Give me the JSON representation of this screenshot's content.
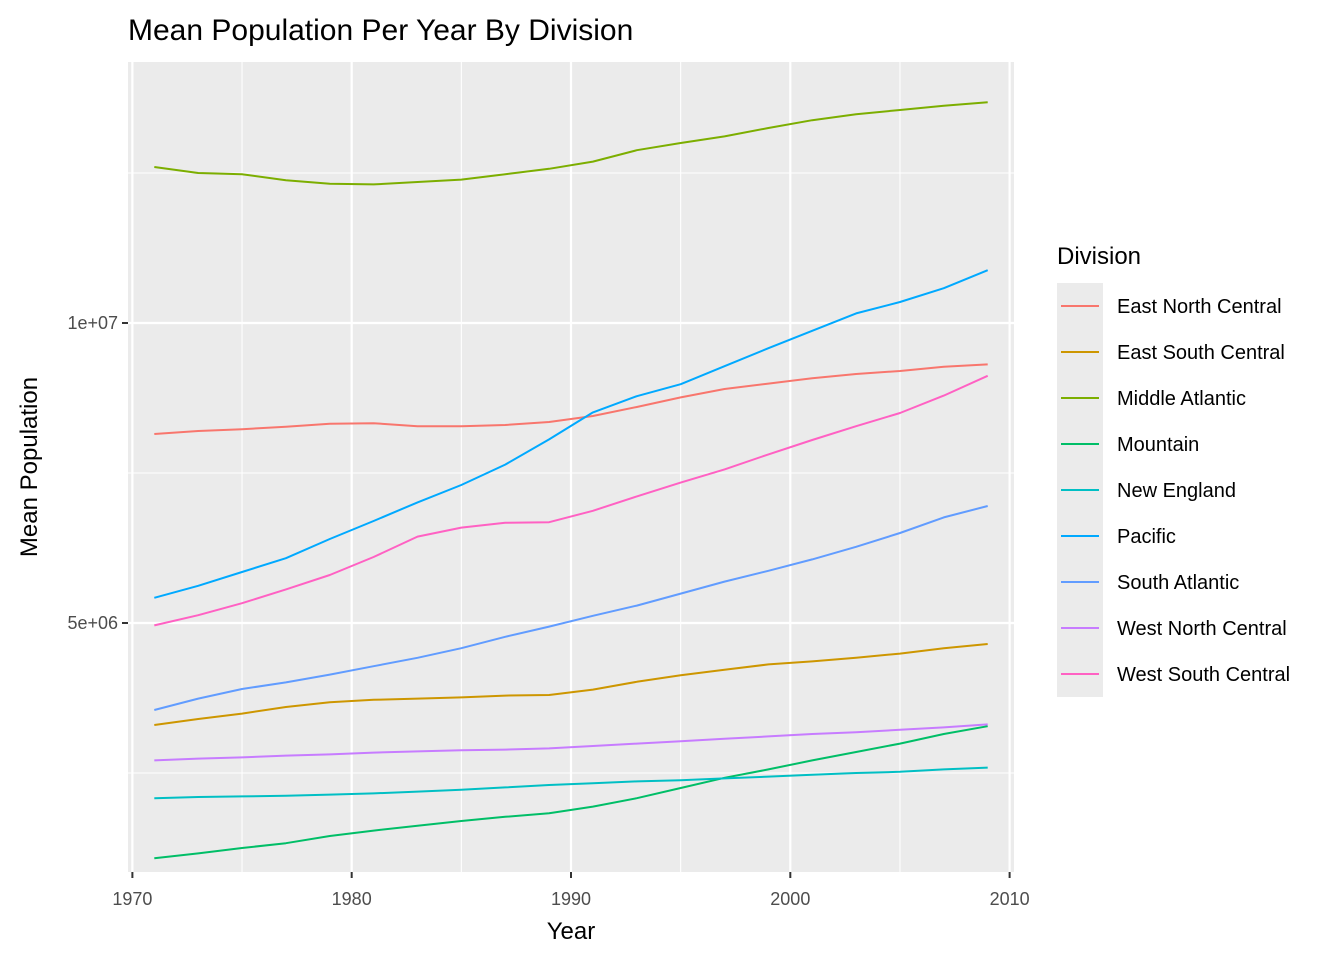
{
  "chart_data": {
    "type": "line",
    "title": "Mean Population Per Year By Division",
    "xlabel": "Year",
    "ylabel": "Mean Population",
    "xlim": [
      1969.8,
      2010.2
    ],
    "ylim": [
      850000,
      14350000
    ],
    "x_ticks": [
      1970,
      1980,
      1990,
      2000,
      2010
    ],
    "y_ticks": [
      5000000,
      10000000
    ],
    "y_tick_labels": [
      "5e+06",
      "1e+07"
    ],
    "grid": true,
    "legend_title": "Division",
    "legend_position": "right",
    "years": [
      1971,
      1973,
      1975,
      1977,
      1979,
      1981,
      1983,
      1985,
      1987,
      1989,
      1991,
      1993,
      1995,
      1997,
      1999,
      2001,
      2003,
      2005,
      2007,
      2009
    ],
    "series": [
      {
        "name": "East North Central",
        "color": "#F8766D",
        "values": [
          8150000,
          8200000,
          8230000,
          8270000,
          8320000,
          8330000,
          8280000,
          8280000,
          8300000,
          8350000,
          8450000,
          8600000,
          8760000,
          8900000,
          8990000,
          9080000,
          9150000,
          9200000,
          9270000,
          9310000
        ]
      },
      {
        "name": "East South Central",
        "color": "#CD9600",
        "values": [
          3300000,
          3400000,
          3490000,
          3600000,
          3680000,
          3720000,
          3740000,
          3760000,
          3790000,
          3800000,
          3890000,
          4020000,
          4130000,
          4220000,
          4310000,
          4360000,
          4420000,
          4490000,
          4580000,
          4650000
        ]
      },
      {
        "name": "Middle Atlantic",
        "color": "#7CAE00",
        "values": [
          12600000,
          12500000,
          12480000,
          12380000,
          12320000,
          12310000,
          12350000,
          12390000,
          12480000,
          12570000,
          12690000,
          12880000,
          13000000,
          13110000,
          13250000,
          13380000,
          13480000,
          13550000,
          13620000,
          13680000
        ]
      },
      {
        "name": "Mountain",
        "color": "#00BE67",
        "values": [
          1080000,
          1160000,
          1250000,
          1330000,
          1450000,
          1540000,
          1620000,
          1700000,
          1770000,
          1830000,
          1940000,
          2080000,
          2250000,
          2420000,
          2560000,
          2710000,
          2850000,
          2990000,
          3150000,
          3280000
        ]
      },
      {
        "name": "New England",
        "color": "#00BFC4",
        "values": [
          2080000,
          2100000,
          2110000,
          2120000,
          2140000,
          2160000,
          2190000,
          2220000,
          2260000,
          2300000,
          2330000,
          2360000,
          2380000,
          2410000,
          2440000,
          2470000,
          2500000,
          2520000,
          2560000,
          2590000
        ]
      },
      {
        "name": "Pacific",
        "color": "#00A9FF",
        "values": [
          5420000,
          5620000,
          5850000,
          6080000,
          6400000,
          6700000,
          7010000,
          7300000,
          7640000,
          8060000,
          8510000,
          8780000,
          8980000,
          9280000,
          9580000,
          9870000,
          10160000,
          10350000,
          10580000,
          10880000
        ]
      },
      {
        "name": "South Atlantic",
        "color": "#619CFF",
        "values": [
          3550000,
          3740000,
          3900000,
          4010000,
          4140000,
          4280000,
          4420000,
          4580000,
          4770000,
          4940000,
          5120000,
          5290000,
          5490000,
          5690000,
          5870000,
          6060000,
          6270000,
          6500000,
          6760000,
          6950000
        ]
      },
      {
        "name": "West North Central",
        "color": "#C77CFF",
        "values": [
          2710000,
          2740000,
          2760000,
          2790000,
          2810000,
          2840000,
          2860000,
          2880000,
          2890000,
          2910000,
          2950000,
          2990000,
          3030000,
          3070000,
          3110000,
          3150000,
          3180000,
          3220000,
          3260000,
          3310000
        ]
      },
      {
        "name": "West South Central",
        "color": "#FF61C3",
        "values": [
          4960000,
          5130000,
          5330000,
          5560000,
          5800000,
          6100000,
          6440000,
          6590000,
          6670000,
          6680000,
          6870000,
          7110000,
          7340000,
          7560000,
          7810000,
          8050000,
          8280000,
          8500000,
          8790000,
          9120000
        ]
      }
    ]
  }
}
